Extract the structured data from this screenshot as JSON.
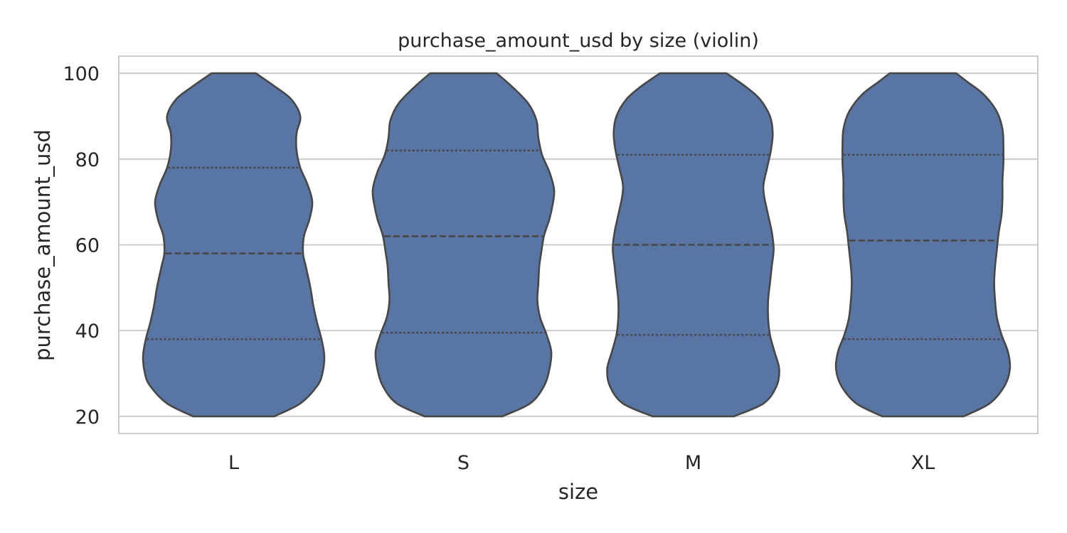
{
  "chart_data": {
    "type": "violin",
    "title": "purchase_amount_usd by size (violin)",
    "xlabel": "size",
    "ylabel": "purchase_amount_usd",
    "categories": [
      "L",
      "S",
      "M",
      "XL"
    ],
    "ylim": [
      16,
      104
    ],
    "yticks": [
      20,
      40,
      60,
      80,
      100
    ],
    "ytick_labels": [
      "20",
      "40",
      "60",
      "80",
      "100"
    ],
    "grid": true,
    "legend": "none",
    "colors": {
      "fill": "#5875a4",
      "edge": "#474747",
      "grid": "#cccccc",
      "frame": "#cccccc"
    },
    "violins": [
      {
        "category": "L",
        "min": 20,
        "max": 100,
        "quartiles": [
          38,
          58,
          78
        ],
        "profile": [
          [
            20,
            0.44
          ],
          [
            23,
            0.72
          ],
          [
            27,
            0.9
          ],
          [
            30,
            0.96
          ],
          [
            34,
            0.98
          ],
          [
            38,
            0.95
          ],
          [
            42,
            0.9
          ],
          [
            46,
            0.86
          ],
          [
            50,
            0.83
          ],
          [
            55,
            0.78
          ],
          [
            58,
            0.75
          ],
          [
            62,
            0.76
          ],
          [
            66,
            0.82
          ],
          [
            70,
            0.85
          ],
          [
            74,
            0.8
          ],
          [
            78,
            0.72
          ],
          [
            82,
            0.68
          ],
          [
            86,
            0.68
          ],
          [
            90,
            0.72
          ],
          [
            94,
            0.62
          ],
          [
            97,
            0.44
          ],
          [
            100,
            0.24
          ]
        ]
      },
      {
        "category": "S",
        "min": 20,
        "max": 100,
        "quartiles": [
          39.5,
          62,
          82
        ],
        "profile": [
          [
            20,
            0.42
          ],
          [
            23,
            0.72
          ],
          [
            27,
            0.87
          ],
          [
            31,
            0.93
          ],
          [
            35,
            0.95
          ],
          [
            39,
            0.9
          ],
          [
            43,
            0.83
          ],
          [
            47,
            0.8
          ],
          [
            51,
            0.81
          ],
          [
            55,
            0.82
          ],
          [
            58,
            0.84
          ],
          [
            62,
            0.87
          ],
          [
            66,
            0.93
          ],
          [
            70,
            0.97
          ],
          [
            73,
            0.98
          ],
          [
            77,
            0.93
          ],
          [
            81,
            0.85
          ],
          [
            85,
            0.81
          ],
          [
            89,
            0.79
          ],
          [
            93,
            0.7
          ],
          [
            97,
            0.52
          ],
          [
            100,
            0.36
          ]
        ]
      },
      {
        "category": "M",
        "min": 20,
        "max": 100,
        "quartiles": [
          39,
          60,
          81
        ],
        "profile": [
          [
            20,
            0.44
          ],
          [
            23,
            0.76
          ],
          [
            27,
            0.9
          ],
          [
            31,
            0.93
          ],
          [
            35,
            0.88
          ],
          [
            39,
            0.83
          ],
          [
            43,
            0.81
          ],
          [
            47,
            0.81
          ],
          [
            51,
            0.83
          ],
          [
            55,
            0.85
          ],
          [
            59,
            0.87
          ],
          [
            63,
            0.85
          ],
          [
            67,
            0.81
          ],
          [
            71,
            0.77
          ],
          [
            74,
            0.76
          ],
          [
            78,
            0.8
          ],
          [
            82,
            0.84
          ],
          [
            86,
            0.86
          ],
          [
            90,
            0.83
          ],
          [
            94,
            0.72
          ],
          [
            97,
            0.56
          ],
          [
            100,
            0.36
          ]
        ]
      },
      {
        "category": "XL",
        "min": 20,
        "max": 100,
        "quartiles": [
          38,
          61,
          81
        ],
        "profile": [
          [
            20,
            0.44
          ],
          [
            23,
            0.72
          ],
          [
            27,
            0.88
          ],
          [
            31,
            0.94
          ],
          [
            35,
            0.92
          ],
          [
            39,
            0.85
          ],
          [
            43,
            0.8
          ],
          [
            47,
            0.78
          ],
          [
            51,
            0.77
          ],
          [
            55,
            0.78
          ],
          [
            59,
            0.8
          ],
          [
            63,
            0.82
          ],
          [
            67,
            0.85
          ],
          [
            71,
            0.86
          ],
          [
            75,
            0.86
          ],
          [
            79,
            0.87
          ],
          [
            83,
            0.87
          ],
          [
            87,
            0.86
          ],
          [
            91,
            0.8
          ],
          [
            95,
            0.66
          ],
          [
            98,
            0.48
          ],
          [
            100,
            0.36
          ]
        ]
      }
    ]
  }
}
